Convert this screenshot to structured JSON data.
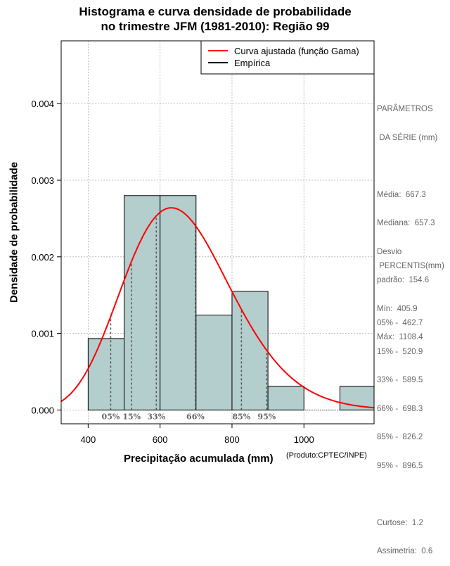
{
  "chart_data": {
    "type": "bar",
    "title_lines": [
      "Histograma e curva densidade de probabilidade",
      "no trimestre JFM (1981-2010): Região 99"
    ],
    "xlabel": "Precipitação acumulada (mm)",
    "ylabel": "Densidade de probabilidade",
    "xlim": [
      325,
      1195
    ],
    "ylim": [
      -0.00018,
      0.00482
    ],
    "x_ticks": [
      400,
      600,
      800,
      1000
    ],
    "x_tick_labels": [
      "400",
      "600",
      "800",
      "1000"
    ],
    "y_ticks": [
      0,
      0.001,
      0.002,
      0.003,
      0.004
    ],
    "y_tick_labels": [
      "0.000",
      "0.001",
      "0.002",
      "0.003",
      "0.004"
    ],
    "grid": true,
    "bar_color": "#b4cdcd",
    "curve_color": "#ff0000",
    "bins": [
      {
        "start": 400,
        "end": 500,
        "density": 0.000933
      },
      {
        "start": 500,
        "end": 600,
        "density": 0.0028
      },
      {
        "start": 600,
        "end": 700,
        "density": 0.0028
      },
      {
        "start": 700,
        "end": 800,
        "density": 0.00124
      },
      {
        "start": 800,
        "end": 900,
        "density": 0.00155
      },
      {
        "start": 900,
        "end": 1000,
        "density": 0.00031
      },
      {
        "start": 1100,
        "end": 1200,
        "density": 0.00031
      }
    ],
    "gamma_fit": {
      "mean": 667.3,
      "sd": 154.6
    },
    "percentile_markers": [
      {
        "label": "05%",
        "x": 462.7
      },
      {
        "label": "15%",
        "x": 520.9
      },
      {
        "label": "33%",
        "x": 589.5
      },
      {
        "label": "66%",
        "x": 698.3
      },
      {
        "label": "85%",
        "x": 826.2
      },
      {
        "label": "95%",
        "x": 896.5
      }
    ],
    "legend": {
      "position": "top-right",
      "entries": [
        {
          "label": "Curva ajustada (função Gama)",
          "color": "#ff0000"
        },
        {
          "label": "Empírica",
          "color": "#000000"
        }
      ]
    }
  },
  "side_panel": {
    "params_title": [
      "PARÂMETROS",
      " DA SÉRIE (mm)"
    ],
    "params": [
      "Média:  667.3",
      "Mediana:  657.3",
      "Desvio",
      "padrão:  154.6",
      "Mín:  405.9",
      "Máx:  1108.4"
    ],
    "percentiles_title": " PERCENTIS(mm)",
    "percentiles": [
      "05% -  462.7",
      "15% -  520.9",
      "33% -  589.5",
      "66% -  698.3",
      "85% -  826.2",
      "95% -  896.5"
    ],
    "stats": [
      "Curtose:  1.2",
      "Assimetria:  0.6"
    ]
  },
  "footnote": "(Produto:CPTEC/INPE)"
}
